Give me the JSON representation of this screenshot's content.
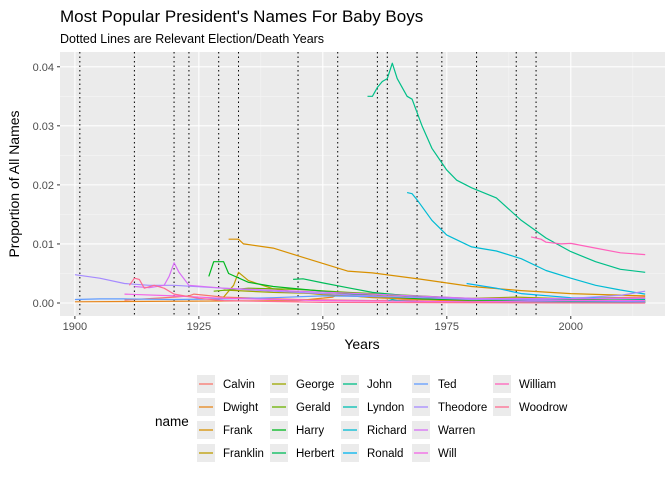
{
  "chart_data": {
    "type": "line",
    "title": "Most Popular President's Names For Baby Boys",
    "subtitle": "Dotted Lines are Relevant Election/Death Years",
    "xlabel": "Years",
    "ylabel": "Proportion of All Names",
    "xlim": [
      1897,
      2019
    ],
    "ylim": [
      -0.0022,
      0.0425
    ],
    "x_ticks": [
      1900,
      1925,
      1950,
      1975,
      2000
    ],
    "y_ticks": [
      0,
      0.01,
      0.02,
      0.03,
      0.04
    ],
    "x_tick_labels": [
      "1900",
      "1925",
      "1950",
      "1975",
      "2000"
    ],
    "y_tick_labels": [
      "0.00",
      "0.01",
      "0.02",
      "0.03",
      "0.04"
    ],
    "grid": true,
    "legend_title": "name",
    "legend_position": "bottom",
    "vlines": [
      1901,
      1912,
      1920,
      1923,
      1929,
      1933,
      1945,
      1953,
      1961,
      1963,
      1969,
      1974,
      1981,
      1989,
      1993
    ],
    "series": [
      {
        "name": "Calvin",
        "color": "#F8766D",
        "points": [
          [
            1910,
            0.0005
          ],
          [
            1920,
            0.001
          ],
          [
            1923,
            0.0012
          ],
          [
            1924,
            0.0015
          ],
          [
            1930,
            0.001
          ],
          [
            1945,
            0.0006
          ],
          [
            1960,
            0.0004
          ],
          [
            1980,
            0.0006
          ],
          [
            2000,
            0.0008
          ],
          [
            2015,
            0.001
          ]
        ]
      },
      {
        "name": "Dwight",
        "color": "#E7861B",
        "points": [
          [
            1900,
            0.0002
          ],
          [
            1945,
            0.0004
          ],
          [
            1952,
            0.001
          ],
          [
            1953,
            0.0014
          ],
          [
            1960,
            0.0009
          ],
          [
            1975,
            0.0004
          ],
          [
            2015,
            0.0001
          ]
        ]
      },
      {
        "name": "Frank",
        "color": "#D89000",
        "points": [
          [
            1931,
            0.0108
          ],
          [
            1933,
            0.0108
          ],
          [
            1934,
            0.01
          ],
          [
            1940,
            0.0093
          ],
          [
            1945,
            0.008
          ],
          [
            1955,
            0.0054
          ],
          [
            1960,
            0.0051
          ],
          [
            1970,
            0.004
          ],
          [
            1980,
            0.0028
          ],
          [
            1990,
            0.0021
          ],
          [
            2000,
            0.0016
          ],
          [
            2015,
            0.0012
          ]
        ]
      },
      {
        "name": "Franklin",
        "color": "#BD9D00",
        "points": [
          [
            1930,
            0.001
          ],
          [
            1932,
            0.003
          ],
          [
            1933,
            0.0052
          ],
          [
            1935,
            0.0038
          ],
          [
            1940,
            0.0024
          ],
          [
            1945,
            0.0018
          ],
          [
            1950,
            0.0014
          ],
          [
            1960,
            0.001
          ],
          [
            1980,
            0.0005
          ],
          [
            2015,
            0.0004
          ]
        ]
      },
      {
        "name": "George",
        "color": "#9CA700",
        "points": [
          [
            1930,
            0.0022
          ],
          [
            1940,
            0.0018
          ],
          [
            1950,
            0.0016
          ],
          [
            1960,
            0.0014
          ],
          [
            1970,
            0.0011
          ],
          [
            1980,
            0.0008
          ],
          [
            1989,
            0.001
          ],
          [
            2000,
            0.0007
          ],
          [
            2015,
            0.0003
          ]
        ]
      },
      {
        "name": "Gerald",
        "color": "#6BB100",
        "points": [
          [
            1928,
            0.002
          ],
          [
            1935,
            0.0025
          ],
          [
            1945,
            0.0023
          ],
          [
            1955,
            0.0018
          ],
          [
            1965,
            0.0014
          ],
          [
            1974,
            0.001
          ],
          [
            1980,
            0.0006
          ],
          [
            2000,
            0.0002
          ],
          [
            2015,
            0.0001
          ]
        ]
      },
      {
        "name": "Harry",
        "color": "#00B81F",
        "points": [
          [
            1927,
            0.0045
          ],
          [
            1928,
            0.007
          ],
          [
            1930,
            0.007
          ],
          [
            1931,
            0.005
          ],
          [
            1935,
            0.0035
          ],
          [
            1940,
            0.0028
          ],
          [
            1945,
            0.0024
          ],
          [
            1950,
            0.002
          ],
          [
            1960,
            0.0012
          ],
          [
            1970,
            0.0007
          ],
          [
            1980,
            0.0005
          ],
          [
            2015,
            0.0005
          ]
        ]
      },
      {
        "name": "Herbert",
        "color": "#00BC59",
        "points": [
          [
            1944,
            0.004
          ],
          [
            1946,
            0.0041
          ],
          [
            1950,
            0.0034
          ],
          [
            1955,
            0.0026
          ],
          [
            1960,
            0.0018
          ],
          [
            1970,
            0.001
          ],
          [
            1980,
            0.0006
          ],
          [
            2015,
            0.0002
          ]
        ]
      },
      {
        "name": "John",
        "color": "#00BF88",
        "points": [
          [
            1959,
            0.035
          ],
          [
            1960,
            0.035
          ],
          [
            1961,
            0.0365
          ],
          [
            1962,
            0.0375
          ],
          [
            1963,
            0.038
          ],
          [
            1964,
            0.0406
          ],
          [
            1965,
            0.038
          ],
          [
            1967,
            0.035
          ],
          [
            1968,
            0.0345
          ],
          [
            1970,
            0.03
          ],
          [
            1972,
            0.0262
          ],
          [
            1975,
            0.0225
          ],
          [
            1977,
            0.0208
          ],
          [
            1980,
            0.0195
          ],
          [
            1985,
            0.0178
          ],
          [
            1990,
            0.014
          ],
          [
            1995,
            0.011
          ],
          [
            2000,
            0.0087
          ],
          [
            2005,
            0.007
          ],
          [
            2010,
            0.0057
          ],
          [
            2015,
            0.0052
          ]
        ]
      },
      {
        "name": "Lyndon",
        "color": "#00BFB2",
        "points": [
          [
            1963,
            0.0003
          ],
          [
            1964,
            0.0006
          ],
          [
            1965,
            0.0004
          ],
          [
            1970,
            0.0002
          ],
          [
            2015,
            0.0001
          ]
        ]
      },
      {
        "name": "Richard",
        "color": "#00BBD4",
        "points": [
          [
            1967,
            0.0187
          ],
          [
            1968,
            0.0185
          ],
          [
            1969,
            0.0175
          ],
          [
            1972,
            0.014
          ],
          [
            1975,
            0.0115
          ],
          [
            1980,
            0.0095
          ],
          [
            1985,
            0.0088
          ],
          [
            1990,
            0.0075
          ],
          [
            1995,
            0.0055
          ],
          [
            2000,
            0.0042
          ],
          [
            2005,
            0.003
          ],
          [
            2010,
            0.0022
          ],
          [
            2015,
            0.0015
          ]
        ]
      },
      {
        "name": "Ronald",
        "color": "#00B4EF",
        "points": [
          [
            1979,
            0.0033
          ],
          [
            1985,
            0.0025
          ],
          [
            1990,
            0.0016
          ],
          [
            2000,
            0.0009
          ],
          [
            2015,
            0.0007
          ]
        ]
      },
      {
        "name": "Ted",
        "color": "#619CFF",
        "points": [
          [
            1900,
            0.0006
          ],
          [
            1905,
            0.0007
          ],
          [
            1910,
            0.0007
          ],
          [
            1920,
            0.0006
          ],
          [
            1930,
            0.0007
          ],
          [
            1940,
            0.0009
          ],
          [
            1950,
            0.0012
          ],
          [
            1960,
            0.0011
          ],
          [
            1970,
            0.0009
          ],
          [
            1980,
            0.0007
          ],
          [
            2000,
            0.0004
          ],
          [
            2015,
            0.0002
          ]
        ]
      },
      {
        "name": "Theodore",
        "color": "#A58AFF",
        "points": [
          [
            1900,
            0.0048
          ],
          [
            1905,
            0.0042
          ],
          [
            1910,
            0.0033
          ],
          [
            1915,
            0.003
          ],
          [
            1920,
            0.003
          ],
          [
            1930,
            0.0025
          ],
          [
            1940,
            0.002
          ],
          [
            1950,
            0.0016
          ],
          [
            1960,
            0.0012
          ],
          [
            1970,
            0.0009
          ],
          [
            1980,
            0.0006
          ],
          [
            2000,
            0.0008
          ],
          [
            2010,
            0.0013
          ],
          [
            2015,
            0.002
          ]
        ]
      },
      {
        "name": "Warren",
        "color": "#D870F6",
        "points": [
          [
            1912,
            0.0028
          ],
          [
            1915,
            0.0026
          ],
          [
            1918,
            0.003
          ],
          [
            1919,
            0.0045
          ],
          [
            1920,
            0.0068
          ],
          [
            1921,
            0.0052
          ],
          [
            1923,
            0.003
          ],
          [
            1930,
            0.0025
          ],
          [
            1945,
            0.002
          ],
          [
            1960,
            0.0015
          ],
          [
            1980,
            0.0008
          ],
          [
            2000,
            0.0007
          ],
          [
            2015,
            0.0008
          ]
        ]
      },
      {
        "name": "Will",
        "color": "#F365E6",
        "points": [
          [
            1910,
            0.0015
          ],
          [
            1920,
            0.0012
          ],
          [
            1930,
            0.0008
          ],
          [
            1950,
            0.0004
          ],
          [
            1980,
            0.0002
          ],
          [
            2000,
            0.0004
          ],
          [
            2015,
            0.0004
          ]
        ]
      },
      {
        "name": "William",
        "color": "#FF62BC",
        "points": [
          [
            1992,
            0.0112
          ],
          [
            1994,
            0.0108
          ],
          [
            1995,
            0.0103
          ],
          [
            1998,
            0.01
          ],
          [
            2000,
            0.0101
          ],
          [
            2005,
            0.0093
          ],
          [
            2010,
            0.0085
          ],
          [
            2015,
            0.0082
          ]
        ]
      },
      {
        "name": "Woodrow",
        "color": "#FF6C91",
        "points": [
          [
            1911,
            0.003
          ],
          [
            1912,
            0.0042
          ],
          [
            1913,
            0.004
          ],
          [
            1914,
            0.0025
          ],
          [
            1916,
            0.003
          ],
          [
            1918,
            0.0025
          ],
          [
            1920,
            0.0015
          ],
          [
            1925,
            0.0008
          ],
          [
            1930,
            0.0004
          ],
          [
            1950,
            0.0001
          ],
          [
            2015,
            0.0
          ]
        ]
      }
    ]
  }
}
